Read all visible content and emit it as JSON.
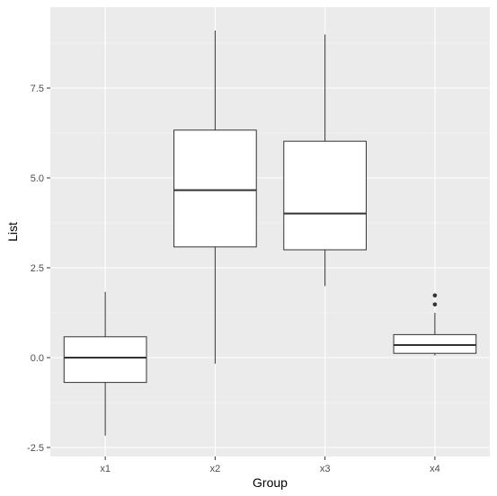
{
  "chart_data": {
    "type": "boxplot",
    "xlabel": "Group",
    "ylabel": "List",
    "categories": [
      "x1",
      "x2",
      "x3",
      "x4"
    ],
    "ylim": [
      -2.75,
      9.75
    ],
    "yticks": [
      -2.5,
      0.0,
      2.5,
      5.0,
      7.5
    ],
    "ytick_labels": [
      "-2.5",
      "0.0",
      "2.5",
      "5.0",
      "7.5"
    ],
    "boxes": [
      {
        "category": "x1",
        "whisker_low": -2.17,
        "q1": -0.69,
        "median": 0.0,
        "q3": 0.58,
        "whisker_high": 1.83,
        "outliers": []
      },
      {
        "category": "x2",
        "whisker_low": -0.17,
        "q1": 3.08,
        "median": 4.66,
        "q3": 6.33,
        "whisker_high": 9.1,
        "outliers": []
      },
      {
        "category": "x3",
        "whisker_low": 1.99,
        "q1": 3.0,
        "median": 4.01,
        "q3": 6.02,
        "whisker_high": 8.99,
        "outliers": []
      },
      {
        "category": "x4",
        "whisker_low": 0.06,
        "q1": 0.12,
        "median": 0.35,
        "q3": 0.64,
        "whisker_high": 1.25,
        "outliers": [
          1.48,
          1.73
        ]
      }
    ],
    "grid": true,
    "legend": "none"
  },
  "colors": {
    "panel_background": "#ebebeb",
    "grid_major": "#ffffff",
    "grid_minor": "#f5f5f5",
    "box_fill": "#ffffff",
    "box_line": "#333333",
    "tick_text": "#4d4d4d",
    "title_text": "#000000"
  }
}
